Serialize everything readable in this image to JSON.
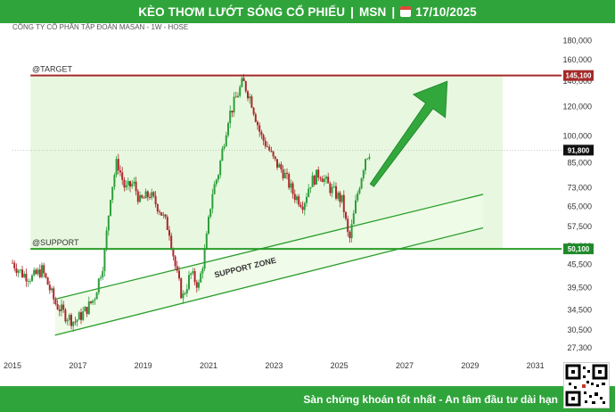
{
  "header": {
    "title": "KÈO THƠM LƯỚT SÓNG CỔ PHIẾU",
    "ticker": "MSN",
    "date": "17/10/2025",
    "separator": "|"
  },
  "footer": {
    "slogan": "Sàn chứng khoán tốt nhất - An tâm đầu tư dài hạn"
  },
  "colors": {
    "brand_green": "#2fa43a",
    "target_red": "#a52a2a",
    "support_green": "#2a9d2a",
    "zone_fill": "#e8f8e0",
    "candle_up": "#2e9e3c",
    "candle_down": "#b0262d"
  },
  "chart_data": {
    "type": "candlestick",
    "title": "CÔNG TY CỔ PHẦN TẬP ĐOÀN MASAN - 1W - HOSE",
    "x_tick_labels": [
      "2015",
      "2017",
      "2019",
      "2021",
      "2023",
      "2025",
      "2027",
      "2029",
      "2031"
    ],
    "x_range": [
      2015.0,
      2031.8
    ],
    "y_scale": "log",
    "y_tick_labels": [
      "180,000",
      "160,000",
      "140,000",
      "120,000",
      "100,000",
      "85,000",
      "73,000",
      "65,000",
      "57,500",
      "51,000",
      "45,500",
      "39,500",
      "34,500",
      "30,500",
      "27,300"
    ],
    "y_tick_values": [
      180000,
      160000,
      140000,
      120000,
      100000,
      85000,
      73000,
      65000,
      57500,
      51000,
      45500,
      39500,
      34500,
      30500,
      27300
    ],
    "y_range": [
      26000,
      200000
    ],
    "target": {
      "label": "@TARGET",
      "value": 145100,
      "value_label": "145,100"
    },
    "support": {
      "label": "@SUPPORT",
      "value": 50100,
      "value_label": "50,100"
    },
    "current": {
      "value": 91800,
      "value_label": "91,800"
    },
    "zone_label": "SUPPORT ZONE",
    "support_channel": {
      "upper": [
        [
          2016.3,
          36800
        ],
        [
          2029.4,
          70000
        ]
      ],
      "lower": [
        [
          2016.3,
          29500
        ],
        [
          2029.4,
          57000
        ]
      ]
    },
    "arrow": {
      "from": [
        2026.0,
        74000
      ],
      "to": [
        2028.3,
        140000
      ]
    },
    "price_path": [
      [
        2015.0,
        46000
      ],
      [
        2015.3,
        43000
      ],
      [
        2015.6,
        42000
      ],
      [
        2015.9,
        44000
      ],
      [
        2016.1,
        40000
      ],
      [
        2016.3,
        36000
      ],
      [
        2016.6,
        33500
      ],
      [
        2016.9,
        32000
      ],
      [
        2017.2,
        34000
      ],
      [
        2017.5,
        37000
      ],
      [
        2017.8,
        47000
      ],
      [
        2018.0,
        70000
      ],
      [
        2018.2,
        86000
      ],
      [
        2018.45,
        72000
      ],
      [
        2018.7,
        75000
      ],
      [
        2018.9,
        67000
      ],
      [
        2019.2,
        70000
      ],
      [
        2019.5,
        64000
      ],
      [
        2019.8,
        56000
      ],
      [
        2020.0,
        44000
      ],
      [
        2020.2,
        37000
      ],
      [
        2020.45,
        43000
      ],
      [
        2020.7,
        40000
      ],
      [
        2020.9,
        50000
      ],
      [
        2021.1,
        70000
      ],
      [
        2021.3,
        80000
      ],
      [
        2021.6,
        112000
      ],
      [
        2021.9,
        130000
      ],
      [
        2022.05,
        140000
      ],
      [
        2022.3,
        125000
      ],
      [
        2022.6,
        100000
      ],
      [
        2022.8,
        94000
      ],
      [
        2023.0,
        86000
      ],
      [
        2023.3,
        80000
      ],
      [
        2023.6,
        70000
      ],
      [
        2023.9,
        66000
      ],
      [
        2024.1,
        75000
      ],
      [
        2024.4,
        80000
      ],
      [
        2024.7,
        73000
      ],
      [
        2024.9,
        70000
      ],
      [
        2025.1,
        67000
      ],
      [
        2025.3,
        52000
      ],
      [
        2025.55,
        70000
      ],
      [
        2025.8,
        88000
      ],
      [
        2025.95,
        91800
      ]
    ]
  }
}
